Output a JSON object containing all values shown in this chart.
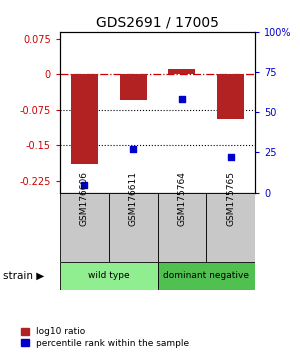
{
  "title": "GDS2691 / 17005",
  "samples": [
    "GSM176606",
    "GSM176611",
    "GSM175764",
    "GSM175765"
  ],
  "log10_ratio": [
    -0.19,
    -0.055,
    0.012,
    -0.095
  ],
  "percentile_rank": [
    5.0,
    27.0,
    58.0,
    22.0
  ],
  "bar_color": "#B22222",
  "dot_color": "#0000CC",
  "ylim_left": [
    -0.25,
    0.09
  ],
  "ylim_right": [
    0,
    100
  ],
  "yticks_left": [
    0.075,
    0.0,
    -0.075,
    -0.15,
    -0.225
  ],
  "ytick_labels_left": [
    "0.075",
    "0",
    "-0.075",
    "-0.15",
    "-0.225"
  ],
  "yticks_right": [
    100,
    75,
    50,
    25,
    0
  ],
  "ytick_labels_right": [
    "100%",
    "75",
    "50",
    "25",
    "0"
  ],
  "hline_zero": 0.0,
  "hline_dotted1": -0.075,
  "hline_dotted2": -0.15,
  "strain_groups": [
    {
      "label": "wild type",
      "samples": [
        0,
        1
      ],
      "color": "#90EE90"
    },
    {
      "label": "dominant negative",
      "samples": [
        2,
        3
      ],
      "color": "#50C050"
    }
  ],
  "strain_label": "strain",
  "legend_items": [
    {
      "color": "#B22222",
      "label": "log10 ratio"
    },
    {
      "color": "#0000CC",
      "label": "percentile rank within the sample"
    }
  ],
  "background_color": "#ffffff",
  "sample_box_color": "#C8C8C8",
  "bar_width": 0.55
}
